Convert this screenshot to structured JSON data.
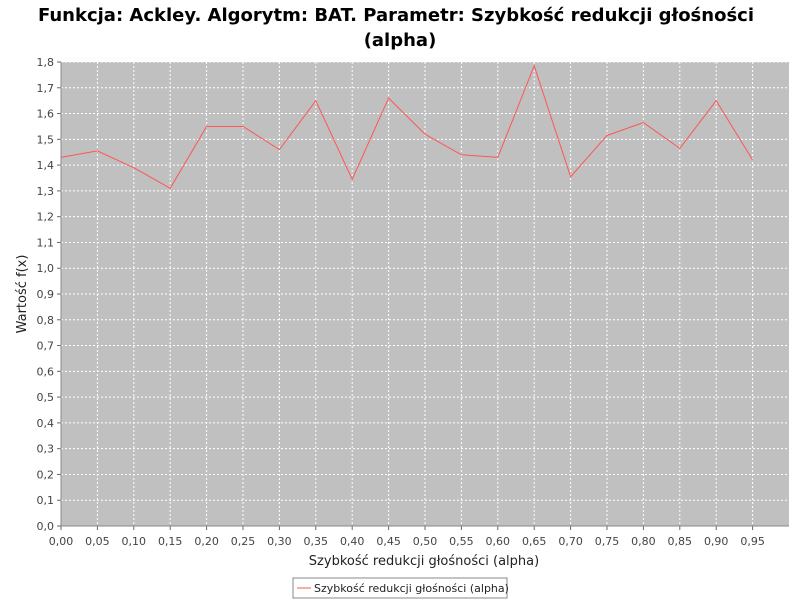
{
  "chart_data": {
    "type": "line",
    "title_lines": [
      "Funkcja: Ackley. Algorytm: BAT. Parametr: Szybkość redukcji głośności",
      "(alpha)"
    ],
    "xlabel": "Szybkość redukcji głośności (alpha)",
    "ylabel": "Wartość f(x)",
    "x_ticks": [
      "0,00",
      "0,05",
      "0,10",
      "0,15",
      "0,20",
      "0,25",
      "0,30",
      "0,35",
      "0,40",
      "0,45",
      "0,50",
      "0,55",
      "0,60",
      "0,65",
      "0,70",
      "0,75",
      "0,80",
      "0,85",
      "0,90",
      "0,95"
    ],
    "y_ticks": [
      "0,0",
      "0,1",
      "0,2",
      "0,3",
      "0,4",
      "0,5",
      "0,6",
      "0,7",
      "0,8",
      "0,9",
      "1,0",
      "1,1",
      "1,2",
      "1,3",
      "1,4",
      "1,5",
      "1,6",
      "1,7",
      "1,8"
    ],
    "xlim": [
      0.0,
      1.0
    ],
    "ylim": [
      0.0,
      1.8
    ],
    "grid": true,
    "legend_position": "bottom-center",
    "colors": {
      "plot_background": "#c0c0c0",
      "series": "#ff5555",
      "grid": "#ffffff"
    },
    "series": [
      {
        "name": "Szybkość redukcji głośności (alpha)",
        "x": [
          0.0,
          0.05,
          0.1,
          0.15,
          0.2,
          0.25,
          0.3,
          0.35,
          0.4,
          0.45,
          0.5,
          0.55,
          0.6,
          0.65,
          0.7,
          0.75,
          0.8,
          0.85,
          0.9,
          0.95
        ],
        "y": [
          1.43,
          1.455,
          1.39,
          1.31,
          1.55,
          1.55,
          1.46,
          1.65,
          1.345,
          1.66,
          1.52,
          1.44,
          1.43,
          1.785,
          1.355,
          1.515,
          1.565,
          1.465,
          1.65,
          1.42
        ]
      }
    ]
  }
}
